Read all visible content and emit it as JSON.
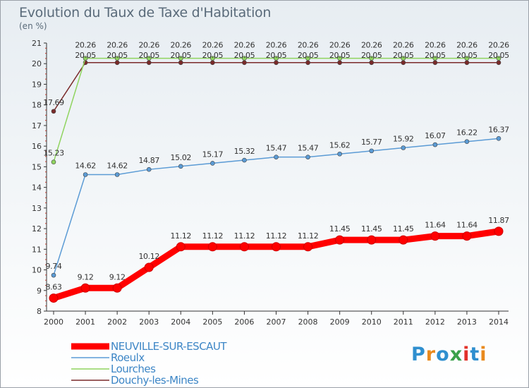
{
  "header": {
    "title": "Evolution du Taux de Taxe d'Habitation",
    "subtitle": "(en %)"
  },
  "brand": {
    "letters": [
      "P",
      "r",
      "o",
      "x",
      "i",
      "t",
      "i"
    ],
    "colors": [
      "#2f8fcf",
      "#e98a1e",
      "#2f8fcf",
      "#3aa14a",
      "#e2322a",
      "#2f8fcf",
      "#e98a1e"
    ]
  },
  "chart_data": {
    "type": "line",
    "title": "Evolution du Taux de Taxe d'Habitation",
    "ylabel": "(en %)",
    "xlabel": "",
    "ylim": [
      8,
      21
    ],
    "yticks": [
      "8",
      "9",
      "10",
      "11",
      "12",
      "13",
      "14",
      "15",
      "16",
      "17",
      "18",
      "19",
      "20",
      "21"
    ],
    "categories": [
      "2000",
      "2001",
      "2002",
      "2003",
      "2004",
      "2005",
      "2006",
      "2007",
      "2008",
      "2009",
      "2010",
      "2011",
      "2012",
      "2013",
      "2014"
    ],
    "series": [
      {
        "name": "NEUVILLE-SUR-ESCAUT",
        "color": "#ff0000",
        "values": [
          8.63,
          9.12,
          9.12,
          10.12,
          11.12,
          11.12,
          11.12,
          11.12,
          11.12,
          11.45,
          11.45,
          11.45,
          11.64,
          11.64,
          11.87
        ],
        "labels": [
          "8.63",
          "9.12",
          "9.12",
          "10.12",
          "11.12",
          "11.12",
          "11.12",
          "11.12",
          "11.12",
          "11.45",
          "11.45",
          "11.45",
          "11.64",
          "11.64",
          "11.87"
        ]
      },
      {
        "name": "Roeulx",
        "color": "#5b9bd5",
        "values": [
          9.74,
          14.62,
          14.62,
          14.87,
          15.02,
          15.17,
          15.32,
          15.47,
          15.47,
          15.62,
          15.77,
          15.92,
          16.07,
          16.22,
          16.37
        ],
        "labels": [
          "9.74",
          "14.62",
          "14.62",
          "14.87",
          "15.02",
          "15.17",
          "15.32",
          "15.47",
          "15.47",
          "15.62",
          "15.77",
          "15.92",
          "16.07",
          "16.22",
          "16.37"
        ]
      },
      {
        "name": "Lourches",
        "color": "#8fd45f",
        "values": [
          15.23,
          20.26,
          20.26,
          20.26,
          20.26,
          20.26,
          20.26,
          20.26,
          20.26,
          20.26,
          20.26,
          20.26,
          20.26,
          20.26,
          20.26
        ],
        "labels": [
          "15.23",
          "20.26",
          "20.26",
          "20.26",
          "20.26",
          "20.26",
          "20.26",
          "20.26",
          "20.26",
          "20.26",
          "20.26",
          "20.26",
          "20.26",
          "20.26",
          "20.26"
        ]
      },
      {
        "name": "Douchy-les-Mines",
        "color": "#7a2a2a",
        "values": [
          17.69,
          20.05,
          20.05,
          20.05,
          20.05,
          20.05,
          20.05,
          20.05,
          20.05,
          20.05,
          20.05,
          20.05,
          20.05,
          20.05,
          20.05
        ],
        "labels": [
          "17.69",
          "20.05",
          "20.05",
          "20.05",
          "20.05",
          "20.05",
          "20.05",
          "20.05",
          "20.05",
          "20.05",
          "20.05",
          "20.05",
          "20.05",
          "20.05",
          "20.05"
        ]
      }
    ],
    "grid": false,
    "legend": "bottom-left"
  }
}
